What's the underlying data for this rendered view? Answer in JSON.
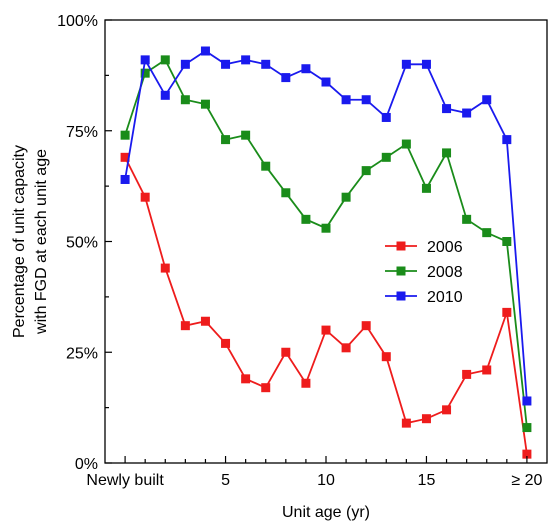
{
  "chart_data": {
    "type": "line",
    "title": "",
    "xlabel": "Unit age (yr)",
    "ylabel_lines": [
      "Percentage of unit capacity",
      "with FGD at each unit age"
    ],
    "xlim": [
      -1,
      21
    ],
    "ylim": [
      0,
      100
    ],
    "x": [
      0,
      1,
      2,
      3,
      4,
      5,
      6,
      7,
      8,
      9,
      10,
      11,
      12,
      13,
      14,
      15,
      16,
      17,
      18,
      19,
      20
    ],
    "x_ticks": [
      {
        "value": 0,
        "label": "Newly built"
      },
      {
        "value": 5,
        "label": "5"
      },
      {
        "value": 10,
        "label": "10"
      },
      {
        "value": 15,
        "label": "15"
      },
      {
        "value": 20,
        "label": "≥ 20"
      }
    ],
    "y_ticks": [
      {
        "value": 0,
        "label": "0%"
      },
      {
        "value": 25,
        "label": "25%"
      },
      {
        "value": 50,
        "label": "50%"
      },
      {
        "value": 75,
        "label": "75%"
      },
      {
        "value": 100,
        "label": "100%"
      }
    ],
    "legend_position": "center-right",
    "series": [
      {
        "name": "2006",
        "color": "#ee1c1c",
        "values": [
          69,
          60,
          44,
          31,
          32,
          27,
          19,
          17,
          25,
          18,
          30,
          26,
          31,
          24,
          9,
          10,
          12,
          20,
          21,
          34,
          2
        ]
      },
      {
        "name": "2008",
        "color": "#1a8c1a",
        "values": [
          74,
          88,
          91,
          82,
          81,
          73,
          74,
          67,
          61,
          55,
          53,
          60,
          66,
          69,
          72,
          62,
          70,
          55,
          52,
          50,
          8
        ]
      },
      {
        "name": "2010",
        "color": "#1a1aee",
        "values": [
          64,
          91,
          83,
          90,
          93,
          90,
          91,
          90,
          87,
          89,
          86,
          82,
          82,
          78,
          90,
          90,
          80,
          79,
          82,
          73,
          14
        ]
      }
    ]
  }
}
